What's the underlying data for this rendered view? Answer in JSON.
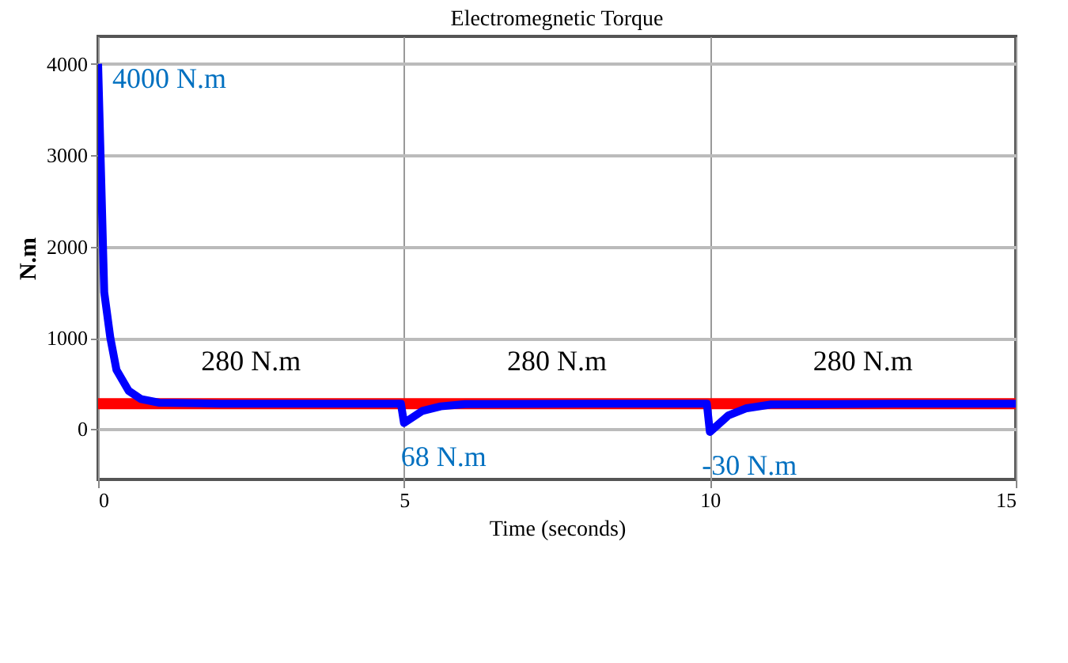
{
  "chart_data": {
    "type": "line",
    "title": "Electromegnetic Torque",
    "xlabel": "Time (seconds)",
    "ylabel": "N.m",
    "xlim": [
      0,
      15
    ],
    "xticks": [
      0,
      5,
      10,
      15
    ],
    "ylim": [
      -550,
      4300
    ],
    "yticks": [
      0,
      1000,
      2000,
      3000,
      4000
    ],
    "grid": true,
    "series": [
      {
        "color": "#ff0000",
        "x": [
          0,
          15
        ],
        "values": [
          280,
          280
        ]
      },
      {
        "color": "#0000ff",
        "x": [
          0,
          0.1,
          0.2,
          0.3,
          0.5,
          0.7,
          1,
          2,
          4.95,
          5,
          5.3,
          5.6,
          6,
          8,
          9.95,
          10,
          10.3,
          10.6,
          11,
          13,
          15
        ],
        "values": [
          4000,
          1500,
          1000,
          650,
          420,
          330,
          290,
          280,
          280,
          68,
          200,
          250,
          275,
          280,
          280,
          -30,
          150,
          230,
          270,
          280,
          280
        ]
      }
    ],
    "annotations": [
      {
        "text": "4000 N.m",
        "x": 0,
        "y": 4000
      },
      {
        "text": "280 N.m",
        "x": 2.5,
        "y": 280
      },
      {
        "text": "280 N.m",
        "x": 7.5,
        "y": 280
      },
      {
        "text": "280 N.m",
        "x": 12.5,
        "y": 280
      },
      {
        "text": "68 N.m",
        "x": 5,
        "y": 68
      },
      {
        "text": "-30 N.m",
        "x": 10,
        "y": -30
      }
    ]
  }
}
